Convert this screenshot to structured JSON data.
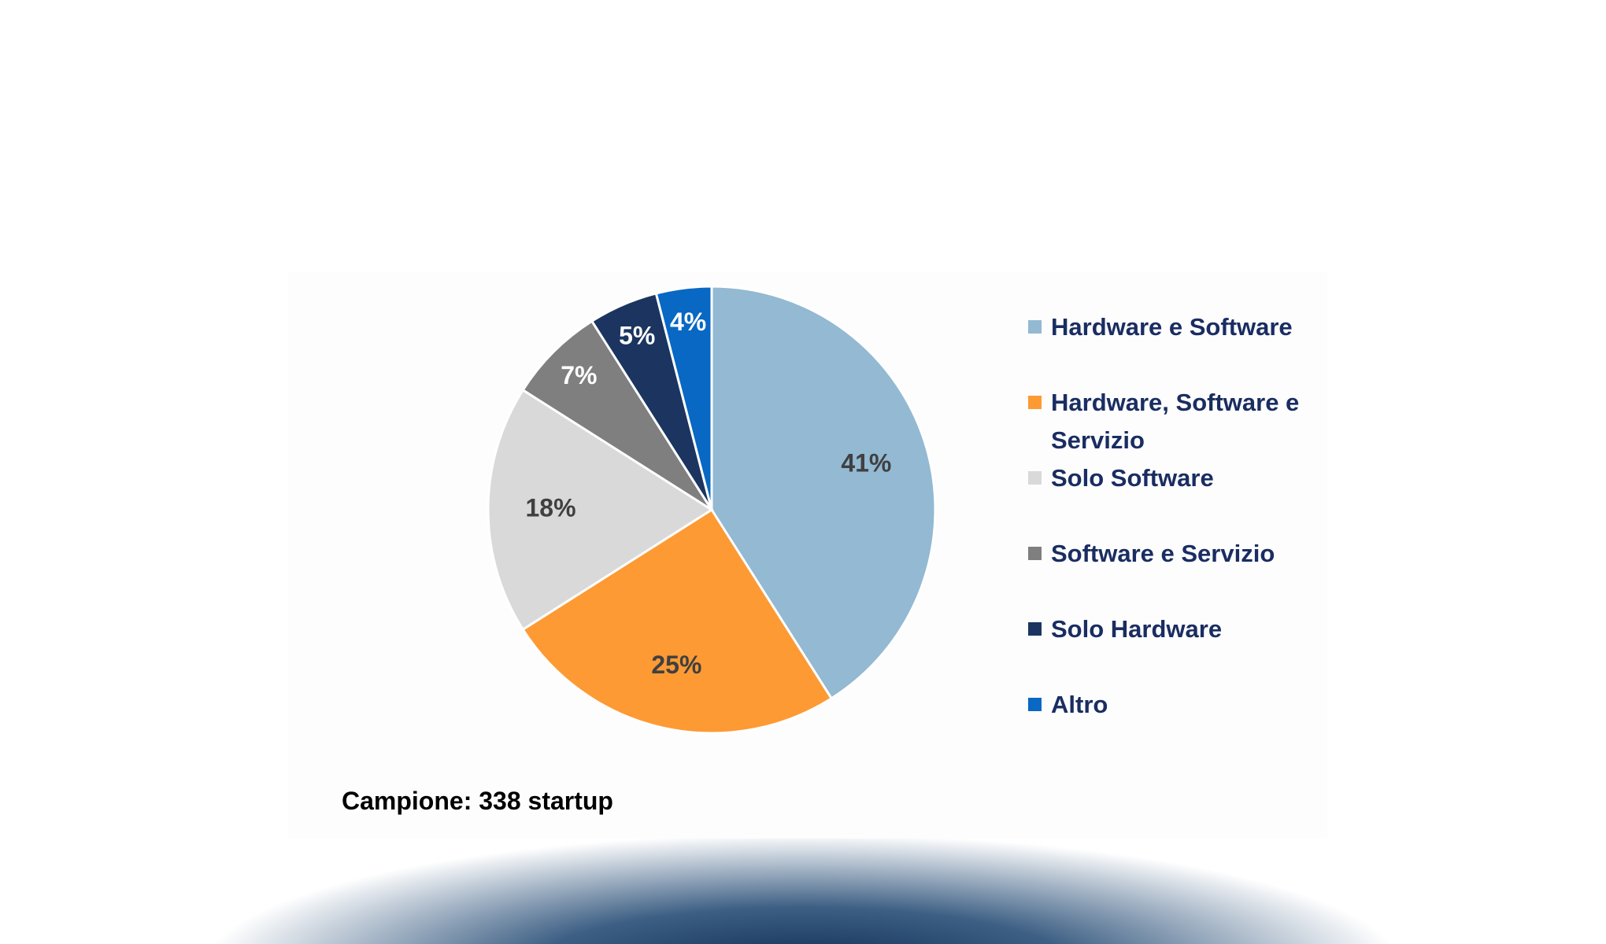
{
  "chart_data": {
    "type": "pie",
    "categories": [
      "Hardware e Software",
      "Hardware, Software e Servizio",
      "Solo Software",
      "Software e Servizio",
      "Solo Hardware",
      "Altro"
    ],
    "values": [
      41,
      25,
      18,
      7,
      5,
      4
    ],
    "value_labels": [
      "41%",
      "25%",
      "18%",
      "7%",
      "5%",
      "4%"
    ],
    "colors": [
      "#93b9d3",
      "#fd9a34",
      "#d9d9d9",
      "#7f7f7f",
      "#1b3560",
      "#0868c3"
    ],
    "note": "Campione: 338 startup"
  }
}
